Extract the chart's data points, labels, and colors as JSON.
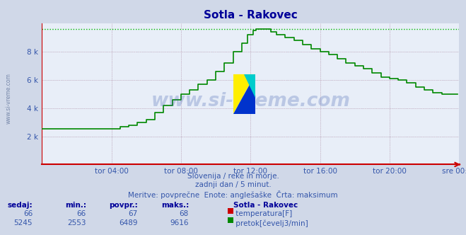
{
  "title": "Sotla - Rakovec",
  "bg_color": "#d0d8e8",
  "plot_bg_color": "#e8eef8",
  "grid_color": "#aabbdd",
  "grid_linestyle": "dotted",
  "red_grid_color": "#dd9999",
  "x_labels": [
    "tor 04:00",
    "tor 08:00",
    "tor 12:00",
    "tor 16:00",
    "tor 20:00",
    "sre 00:00"
  ],
  "y_tick_labels": [
    "",
    "2 k",
    "4 k",
    "6 k",
    "8 k"
  ],
  "y_ticks": [
    0,
    2000,
    4000,
    6000,
    8000
  ],
  "ylim": [
    0,
    10000
  ],
  "dotted_line_y": 9616,
  "dotted_line_color": "#00bb00",
  "flow_color": "#008800",
  "temp_color": "#cc0000",
  "title_color": "#000099",
  "title_fontsize": 11,
  "axis_color": "#cc0000",
  "label_color": "#3355aa",
  "footer_bold_color": "#000099",
  "watermark_color": "#3355aa",
  "sub_text1": "Slovenija / reke in morje.",
  "sub_text2": "zadnji dan / 5 minut.",
  "sub_text3": "Meritve: povprečne  Enote: anglešaške  Črta: maksimum",
  "sedaj_label": "sedaj:",
  "min_label": "min.:",
  "povpr_label": "povpr.:",
  "maks_label": "maks.:",
  "station_label": "Sotla - Rakovec",
  "temp_sedaj": 66,
  "temp_min": 66,
  "temp_povpr": 67,
  "temp_maks": 68,
  "flow_sedaj": 5245,
  "flow_min": 2553,
  "flow_povpr": 6489,
  "flow_maks": 9616,
  "temp_unit": "temperatura[F]",
  "flow_unit": "pretok[čevelj3/min]"
}
